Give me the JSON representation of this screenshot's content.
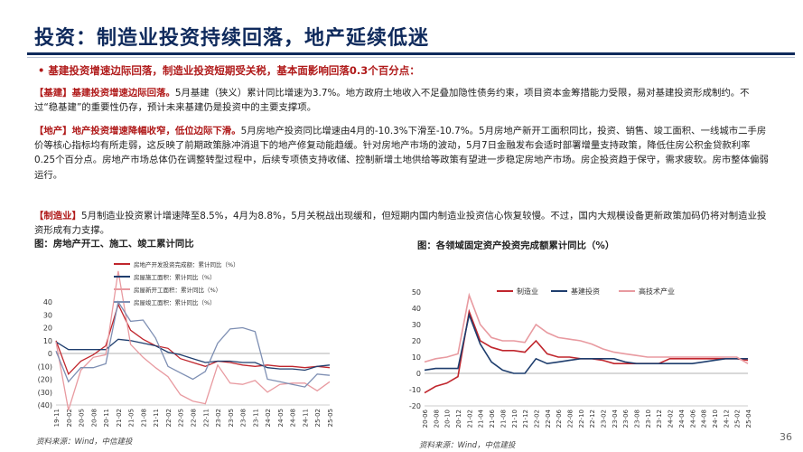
{
  "title": "投资：制造业投资持续回落，地产延续低迷",
  "bullet": "•  基建投资增速边际回落，制造业投资短期受关税，基本面影响回落0.3个百分点：",
  "paragraphs": {
    "infra": {
      "tag": "【基建】",
      "lead": "基建投资增速边际回落。",
      "body": "5月基建（狭义）累计同比增速为3.7%。地方政府土地收入不足叠加隐性债务约束，项目资本金筹措能力受限，易对基建投资形成制约。不过“稳基建”的重要性仍存，预计未来基建仍是投资中的主要支撑项。"
    },
    "realestate": {
      "tag": "【地产】",
      "lead": "地产投资增速降幅收窄，低位边际下滑。",
      "body": "5月房地产投资同比增速由4月的-10.3%下滑至-10.7%。5月房地产新开工面积同比，投资、销售、竣工面积、一线城市二手房价等核心指标均有所走弱，这反映了前期政策脉冲消退下的地产修复动能趋缓。针对房地产市场的波动，5月7日金融发布会适时部署增量支持政策，降低住房公积金贷款利率0.25个百分点。房地产市场总体仍在调整转型过程中，后续专项债支持收储、控制新增土地供给等政策有望进一步稳定房地产市场。房企投资趋于保守，需求疲软。房市整体偏弱运行。"
    },
    "manufacturing": {
      "tag": "【制造业】",
      "body": "5月制造业投资累计增速降至8.5%，4月为8.8%，5月关税战出现缓和，但短期内国内制造业投资信心恢复较慢。不过，国内大规模设备更新政策加码仍将对制造业投资形成有力支撑。"
    }
  },
  "left_figure": {
    "caption": "图：房地产开工、施工、竣工累计同比",
    "source": "资料来源：Wind，中信建投"
  },
  "right_figure": {
    "caption": "图：各领域固定资产投资完成额累计同比（%）",
    "source": "资料来源：Wind，中信建投"
  },
  "page_number": "36",
  "colors": {
    "red": "#c0262d",
    "navy": "#1f3e6e",
    "pink": "#e89aa0",
    "bluegray": "#7e8fb3"
  },
  "chart_data": [
    {
      "type": "line",
      "y_tick_labels": [
        "40",
        "30",
        "20",
        "10",
        "0",
        "(10)",
        "(20)",
        "(30)",
        "(40)"
      ],
      "ylim": [
        -40,
        40
      ],
      "x": [
        "19-11",
        "20-02",
        "20-05",
        "20-08",
        "20-11",
        "21-02",
        "21-05",
        "21-08",
        "21-11",
        "22-02",
        "22-05",
        "22-08",
        "22-11",
        "23-02",
        "23-05",
        "23-08",
        "23-11",
        "24-02",
        "24-05",
        "24-08",
        "24-11",
        "25-02",
        "25-05"
      ],
      "series": [
        {
          "name": "房地产开发投资完成额：累计同比（%）",
          "color": "#c0262d",
          "values": [
            10,
            -16,
            -6,
            -1,
            6,
            38,
            18,
            11,
            6,
            4,
            -4,
            -7,
            -10,
            -6,
            -7,
            -9,
            -10,
            -9,
            -10,
            -10,
            -11,
            -10,
            -11
          ]
        },
        {
          "name": "房屋施工面积：累计同比（%）",
          "color": "#1f3e6e",
          "values": [
            9,
            3,
            3,
            3,
            3,
            11,
            10,
            8,
            6,
            1,
            -1,
            -4,
            -7,
            -6,
            -6,
            -7,
            -7,
            -11,
            -12,
            -12,
            -13,
            -10,
            -9
          ]
        },
        {
          "name": "房屋新开工面积：累计同比（%）",
          "color": "#e89aa0",
          "values": [
            9,
            -44,
            -13,
            -3,
            -1,
            64,
            7,
            -3,
            -11,
            -18,
            -32,
            -37,
            -39,
            -9,
            -23,
            -24,
            -21,
            -30,
            -24,
            -23,
            -23,
            -29,
            -22
          ]
        },
        {
          "name": "房屋竣工面积：累计同比（%）",
          "color": "#7e8fb3",
          "values": [
            2,
            -22,
            -11,
            -11,
            -8,
            40,
            25,
            26,
            12,
            -10,
            -15,
            -20,
            -14,
            8,
            19,
            20,
            17,
            -20,
            -22,
            -24,
            -26,
            -16,
            -17
          ]
        }
      ]
    },
    {
      "type": "line",
      "y_tick_labels": [
        "50",
        "40",
        "30",
        "20",
        "10",
        "0",
        "-10",
        "-20"
      ],
      "ylim": [
        -20,
        50
      ],
      "x": [
        "20-06",
        "20-08",
        "20-10",
        "20-12",
        "21-02",
        "21-04",
        "21-06",
        "21-08",
        "21-10",
        "21-12",
        "22-02",
        "22-04",
        "22-06",
        "22-08",
        "22-10",
        "22-12",
        "23-02",
        "23-04",
        "23-06",
        "23-08",
        "23-10",
        "23-12",
        "24-02",
        "24-04",
        "24-06",
        "24-08",
        "24-10",
        "24-12",
        "25-02",
        "25-04"
      ],
      "series": [
        {
          "name": "制造业",
          "color": "#c0262d",
          "values": [
            -12,
            -8,
            -6,
            -2,
            38,
            20,
            16,
            14,
            14,
            13,
            20,
            12,
            10,
            10,
            9,
            9,
            8,
            6,
            6,
            6,
            6,
            6,
            9,
            9,
            9,
            9,
            9,
            9,
            9,
            8
          ]
        },
        {
          "name": "基建投资",
          "color": "#1f3e6e",
          "values": [
            2,
            3,
            3,
            3,
            36,
            18,
            7,
            2,
            0,
            0,
            9,
            6,
            7,
            8,
            9,
            9,
            9,
            9,
            7,
            6,
            6,
            6,
            6,
            6,
            6,
            7,
            8,
            9,
            9,
            9
          ]
        },
        {
          "name": "高技术产业",
          "color": "#e89aa0",
          "values": [
            7,
            9,
            10,
            12,
            48,
            30,
            22,
            20,
            20,
            19,
            30,
            25,
            22,
            21,
            20,
            18,
            15,
            13,
            12,
            11,
            10,
            10,
            10,
            10,
            10,
            10,
            10,
            10,
            10,
            6
          ]
        }
      ]
    }
  ]
}
